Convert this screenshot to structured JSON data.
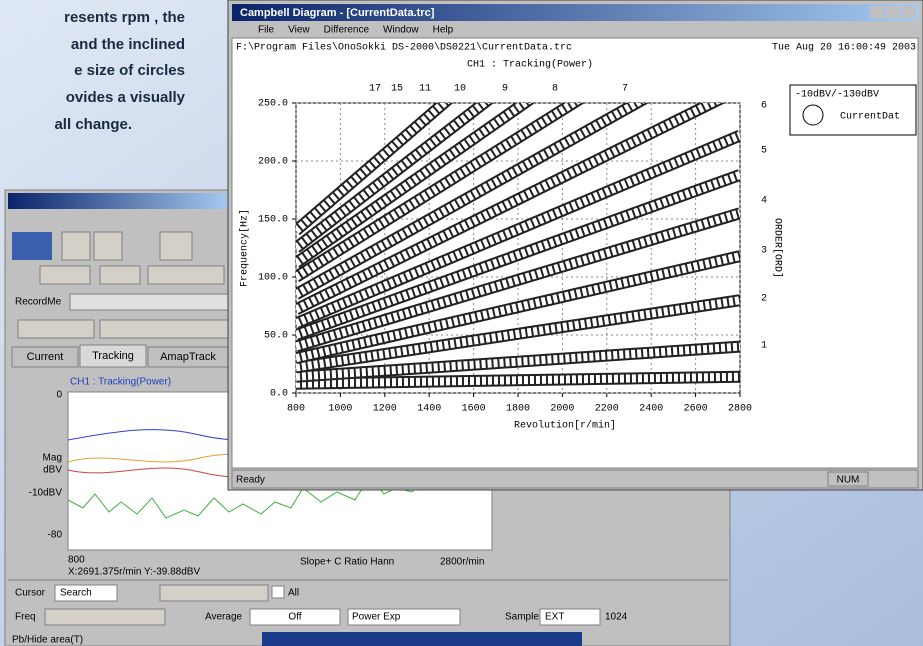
{
  "intro_text": [
    "resents rpm , the",
    "and the inclined",
    "e size of circles",
    "ovides a visually",
    "all change."
  ],
  "front_window": {
    "title": "Campbell Diagram - [CurrentData.trc]",
    "menu": [
      "File",
      "View",
      "Difference",
      "Window",
      "Help"
    ],
    "file_path": "F:\\Program Files\\OnoSokki DS-2000\\DS0221\\CurrentData.trc",
    "date": "Tue Aug 20 16:00:49 2003",
    "status": "Ready",
    "status_num": "NUM"
  },
  "chart_data": {
    "type": "line",
    "title": "CH1 : Tracking(Power)",
    "xlabel": "Revolution[r/min]",
    "ylabel": "Frequency[Hz]",
    "y2label": "ORDER[ORD]",
    "x": [
      800,
      2800
    ],
    "xlim": [
      800,
      2800
    ],
    "ylim": [
      0,
      250
    ],
    "xticks": [
      800,
      1000,
      1200,
      1400,
      1600,
      1800,
      2000,
      2200,
      2400,
      2600,
      2800
    ],
    "yticks": [
      {
        "value": 0,
        "label": "0.0"
      },
      {
        "value": 50,
        "label": "50.0"
      },
      {
        "value": 100,
        "label": "100.0"
      },
      {
        "value": 150,
        "label": "150.0"
      },
      {
        "value": 200,
        "label": "200.0"
      },
      {
        "value": 250,
        "label": "250.0"
      }
    ],
    "grid": true,
    "top_orders": [
      "17",
      "15",
      "11",
      "10",
      "9",
      "8",
      "7"
    ],
    "right_orders": [
      "6",
      "5",
      "4",
      "3",
      "2",
      "1"
    ],
    "legend_range": "-10dBV/-130dBV",
    "legend_label": "CurrentDat",
    "series": [
      {
        "color": "#222222",
        "values": [
          8,
          14
        ]
      },
      {
        "color": "#222222",
        "values": [
          14,
          40
        ]
      },
      {
        "color": "#222222",
        "values": [
          22,
          80
        ]
      },
      {
        "color": "#222222",
        "values": [
          30,
          118
        ]
      },
      {
        "color": "#222222",
        "values": [
          40,
          155
        ]
      },
      {
        "color": "#222222",
        "values": [
          50,
          188
        ]
      },
      {
        "color": "#222222",
        "values": [
          60,
          222
        ]
      },
      {
        "color": "#222222",
        "values": [
          72,
          262
        ]
      },
      {
        "color": "#222222",
        "values": [
          85,
          300
        ]
      },
      {
        "color": "#222222",
        "values": [
          100,
          340
        ]
      },
      {
        "color": "#222222",
        "values": [
          112,
          380
        ]
      },
      {
        "color": "#222222",
        "values": [
          125,
          420
        ]
      },
      {
        "color": "#222222",
        "values": [
          140,
          470
        ]
      }
    ]
  },
  "back_window": {
    "tabs": [
      "Current",
      "Tracking",
      "AmapTrack"
    ],
    "record_label": "RecordMe",
    "graph_title": "CH1 : Tracking(Power)",
    "graph_labels": [
      "0",
      "Mag",
      "dBV",
      "-10dBV",
      "-80"
    ],
    "x_start": "800",
    "cursor_readout": "X:2691.375r/min Y:-39.88dBV",
    "graph_footer": "Slope+ C Ratio Hann",
    "x_end": "2800r/min",
    "cursor": "Cursor",
    "cursor_mode": "Search",
    "all": "All",
    "freq": "Freq",
    "average": "Average",
    "average_value": "Off",
    "power": "Power Exp",
    "sample": "Sample",
    "sample_value": "EXT",
    "sample_size": "1024",
    "status": "Pb/Hide area(T)"
  }
}
